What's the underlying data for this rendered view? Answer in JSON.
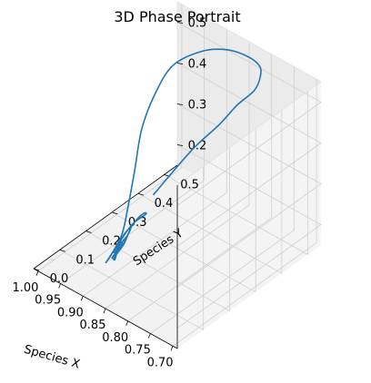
{
  "chart_data": {
    "type": "line",
    "projection": "3d",
    "title": "3D Phase Portrait",
    "xlabel": "Species X",
    "ylabel": "Species Y",
    "zlabel": "",
    "xlim": [
      0.69,
      1.01
    ],
    "ylim": [
      0.0,
      0.55
    ],
    "zlim": [
      0.15,
      0.55
    ],
    "xticks": [
      "0.70",
      "0.75",
      "0.80",
      "0.85",
      "0.90",
      "0.95",
      "1.00"
    ],
    "yticks": [
      "0.0",
      "0.1",
      "0.2",
      "0.3",
      "0.4",
      "0.5"
    ],
    "zticks": [
      "0.2",
      "0.3",
      "0.4",
      "0.5"
    ],
    "grid": true,
    "color": "#1f77b4",
    "series": [
      {
        "x": [
          0.86,
          0.84,
          0.82,
          0.8,
          0.79,
          0.78,
          0.79,
          0.81,
          0.85,
          0.9,
          0.95,
          0.99,
          1.0,
          0.99,
          0.96,
          0.94,
          0.93,
          0.93,
          0.93,
          0.93,
          0.92,
          0.9,
          0.89,
          0.89,
          0.89,
          0.9,
          0.91,
          0.92,
          0.92,
          0.91,
          0.9,
          0.9,
          0.9,
          0.91,
          0.91,
          0.91,
          0.9,
          0.9,
          0.91,
          0.91,
          0.91,
          0.91,
          0.9,
          0.9
        ],
        "y": [
          0.2,
          0.24,
          0.29,
          0.35,
          0.4,
          0.45,
          0.49,
          0.52,
          0.54,
          0.55,
          0.54,
          0.5,
          0.45,
          0.38,
          0.3,
          0.24,
          0.2,
          0.16,
          0.14,
          0.18,
          0.22,
          0.24,
          0.21,
          0.17,
          0.14,
          0.12,
          0.14,
          0.17,
          0.19,
          0.2,
          0.17,
          0.14,
          0.12,
          0.13,
          0.16,
          0.17,
          0.16,
          0.14,
          0.13,
          0.14,
          0.15,
          0.15,
          0.14,
          0.14
        ],
        "z": [
          0.33,
          0.38,
          0.43,
          0.47,
          0.5,
          0.52,
          0.53,
          0.53,
          0.52,
          0.5,
          0.47,
          0.43,
          0.38,
          0.33,
          0.28,
          0.23,
          0.19,
          0.16,
          0.15,
          0.17,
          0.21,
          0.24,
          0.26,
          0.25,
          0.22,
          0.19,
          0.17,
          0.18,
          0.2,
          0.22,
          0.22,
          0.21,
          0.19,
          0.18,
          0.19,
          0.2,
          0.21,
          0.2,
          0.19,
          0.19,
          0.2,
          0.2,
          0.2,
          0.2
        ]
      }
    ]
  }
}
